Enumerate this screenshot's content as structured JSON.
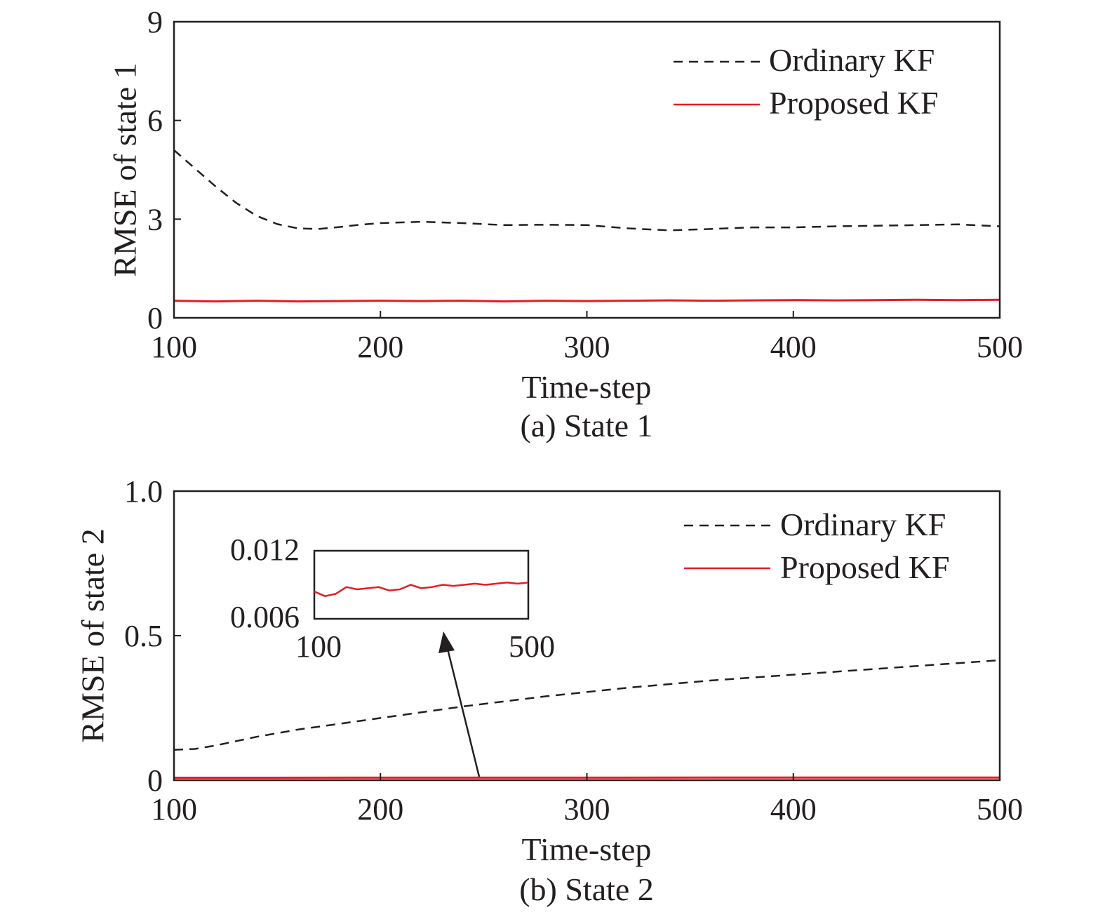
{
  "chart_data": [
    {
      "type": "line",
      "caption": "(a) State 1",
      "xlabel": "Time-step",
      "ylabel": "RMSE of state 1",
      "xlim": [
        100,
        500
      ],
      "ylim": [
        0,
        9
      ],
      "xticks": [
        "100",
        "200",
        "300",
        "400",
        "500"
      ],
      "yticks": [
        "0",
        "3",
        "6",
        "9"
      ],
      "grid": false,
      "legend": "top-right",
      "series": [
        {
          "name": "Ordinary KF",
          "style": "dashed",
          "color": "#231f20",
          "x": [
            100,
            110,
            120,
            130,
            140,
            150,
            160,
            170,
            180,
            190,
            200,
            220,
            240,
            260,
            280,
            300,
            320,
            340,
            360,
            380,
            400,
            420,
            440,
            460,
            480,
            500
          ],
          "y": [
            5.1,
            4.55,
            4.0,
            3.5,
            3.1,
            2.85,
            2.72,
            2.7,
            2.76,
            2.83,
            2.88,
            2.92,
            2.88,
            2.82,
            2.83,
            2.82,
            2.72,
            2.66,
            2.7,
            2.75,
            2.75,
            2.78,
            2.8,
            2.82,
            2.84,
            2.78
          ]
        },
        {
          "name": "Proposed KF",
          "style": "solid",
          "color": "#e31e24",
          "x": [
            100,
            120,
            140,
            160,
            180,
            200,
            220,
            240,
            260,
            280,
            300,
            320,
            340,
            360,
            380,
            400,
            420,
            440,
            460,
            480,
            500
          ],
          "y": [
            0.52,
            0.5,
            0.52,
            0.5,
            0.51,
            0.52,
            0.51,
            0.52,
            0.5,
            0.52,
            0.51,
            0.52,
            0.53,
            0.52,
            0.53,
            0.54,
            0.53,
            0.54,
            0.55,
            0.54,
            0.55
          ]
        }
      ]
    },
    {
      "type": "line",
      "caption": "(b) State 2",
      "xlabel": "Time-step",
      "ylabel": "RMSE of state 2",
      "xlim": [
        100,
        500
      ],
      "ylim": [
        0,
        1.0
      ],
      "xticks": [
        "100",
        "200",
        "300",
        "400",
        "500"
      ],
      "yticks": [
        "0",
        "0.5",
        "1.0"
      ],
      "grid": false,
      "legend": "top-right",
      "series": [
        {
          "name": "Ordinary KF",
          "style": "dashed",
          "color": "#231f20",
          "x": [
            100,
            110,
            120,
            140,
            160,
            180,
            200,
            240,
            280,
            320,
            360,
            400,
            440,
            480,
            500
          ],
          "y": [
            0.105,
            0.108,
            0.12,
            0.15,
            0.175,
            0.195,
            0.215,
            0.255,
            0.29,
            0.32,
            0.345,
            0.365,
            0.385,
            0.405,
            0.415
          ]
        },
        {
          "name": "Proposed KF",
          "style": "solid",
          "color": "#e31e24",
          "x": [
            100,
            500
          ],
          "y": [
            0.0085,
            0.0093
          ]
        }
      ],
      "inset": {
        "xlim": [
          100,
          500
        ],
        "ylim": [
          0.006,
          0.012
        ],
        "xticks": [
          "100",
          "500"
        ],
        "yticks": [
          "0.006",
          "0.012"
        ],
        "series": [
          {
            "name": "Proposed KF",
            "color": "#e31e24",
            "x": [
              100,
              120,
              140,
              160,
              180,
              200,
              220,
              240,
              260,
              280,
              300,
              320,
              340,
              360,
              380,
              400,
              420,
              440,
              460,
              480,
              500
            ],
            "y": [
              0.0084,
              0.008,
              0.0082,
              0.0088,
              0.0086,
              0.0087,
              0.0088,
              0.0085,
              0.0086,
              0.009,
              0.0087,
              0.0088,
              0.009,
              0.0089,
              0.009,
              0.0091,
              0.009,
              0.0091,
              0.0092,
              0.0091,
              0.0092
            ]
          }
        ]
      }
    }
  ]
}
